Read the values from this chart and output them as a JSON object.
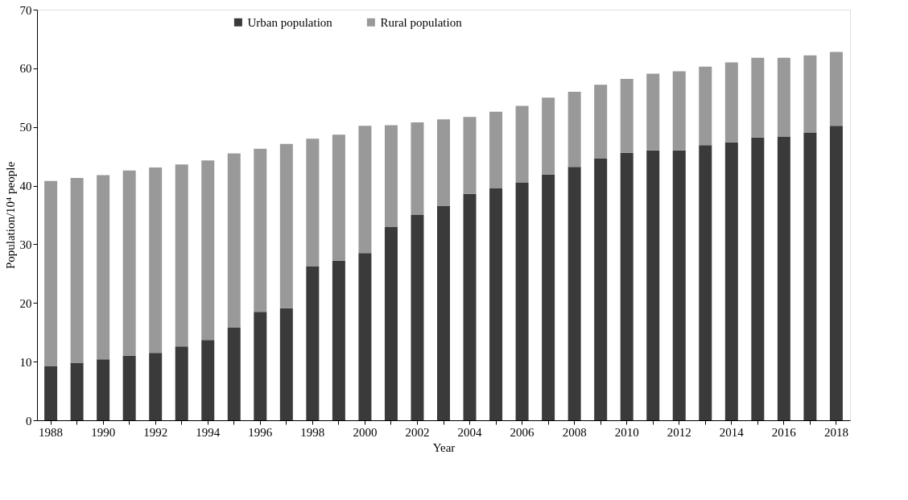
{
  "chart_data": {
    "type": "bar",
    "stacked": true,
    "xlabel": "Year",
    "ylabel": "Population/10⁴ people",
    "categories": [
      "1988",
      null,
      "1990",
      null,
      "1992",
      null,
      "1994",
      null,
      "1996",
      null,
      "1998",
      null,
      "2000",
      null,
      "2002",
      null,
      "2004",
      null,
      "2006",
      null,
      "2008",
      null,
      "2010",
      null,
      "2012",
      null,
      "2014",
      null,
      "2016",
      null,
      "2018"
    ],
    "series": [
      {
        "name": "Urban population",
        "color": "#3a3a3a",
        "values": [
          9.2,
          9.8,
          10.4,
          11.0,
          11.5,
          12.6,
          13.7,
          15.8,
          18.5,
          19.1,
          26.3,
          27.2,
          28.5,
          33.0,
          35.0,
          36.5,
          38.6,
          39.6,
          40.5,
          41.9,
          43.2,
          44.6,
          45.6,
          46.0,
          46.0,
          46.9,
          47.4,
          48.2,
          48.3,
          49.0,
          50.2
        ]
      },
      {
        "name": "Rural population",
        "color": "#999999",
        "values": [
          31.6,
          31.5,
          31.4,
          31.6,
          31.6,
          31.0,
          30.6,
          29.7,
          27.8,
          28.0,
          21.7,
          21.5,
          21.7,
          17.3,
          15.8,
          14.8,
          13.1,
          13.0,
          13.1,
          13.1,
          12.8,
          12.6,
          12.6,
          13.1,
          13.5,
          13.4,
          13.6,
          13.6,
          13.5,
          13.2,
          12.6
        ]
      }
    ],
    "ylim": [
      0,
      70
    ],
    "yticks": [
      0,
      10,
      20,
      30,
      40,
      50,
      60,
      70
    ],
    "grid": false,
    "legend": "top"
  }
}
